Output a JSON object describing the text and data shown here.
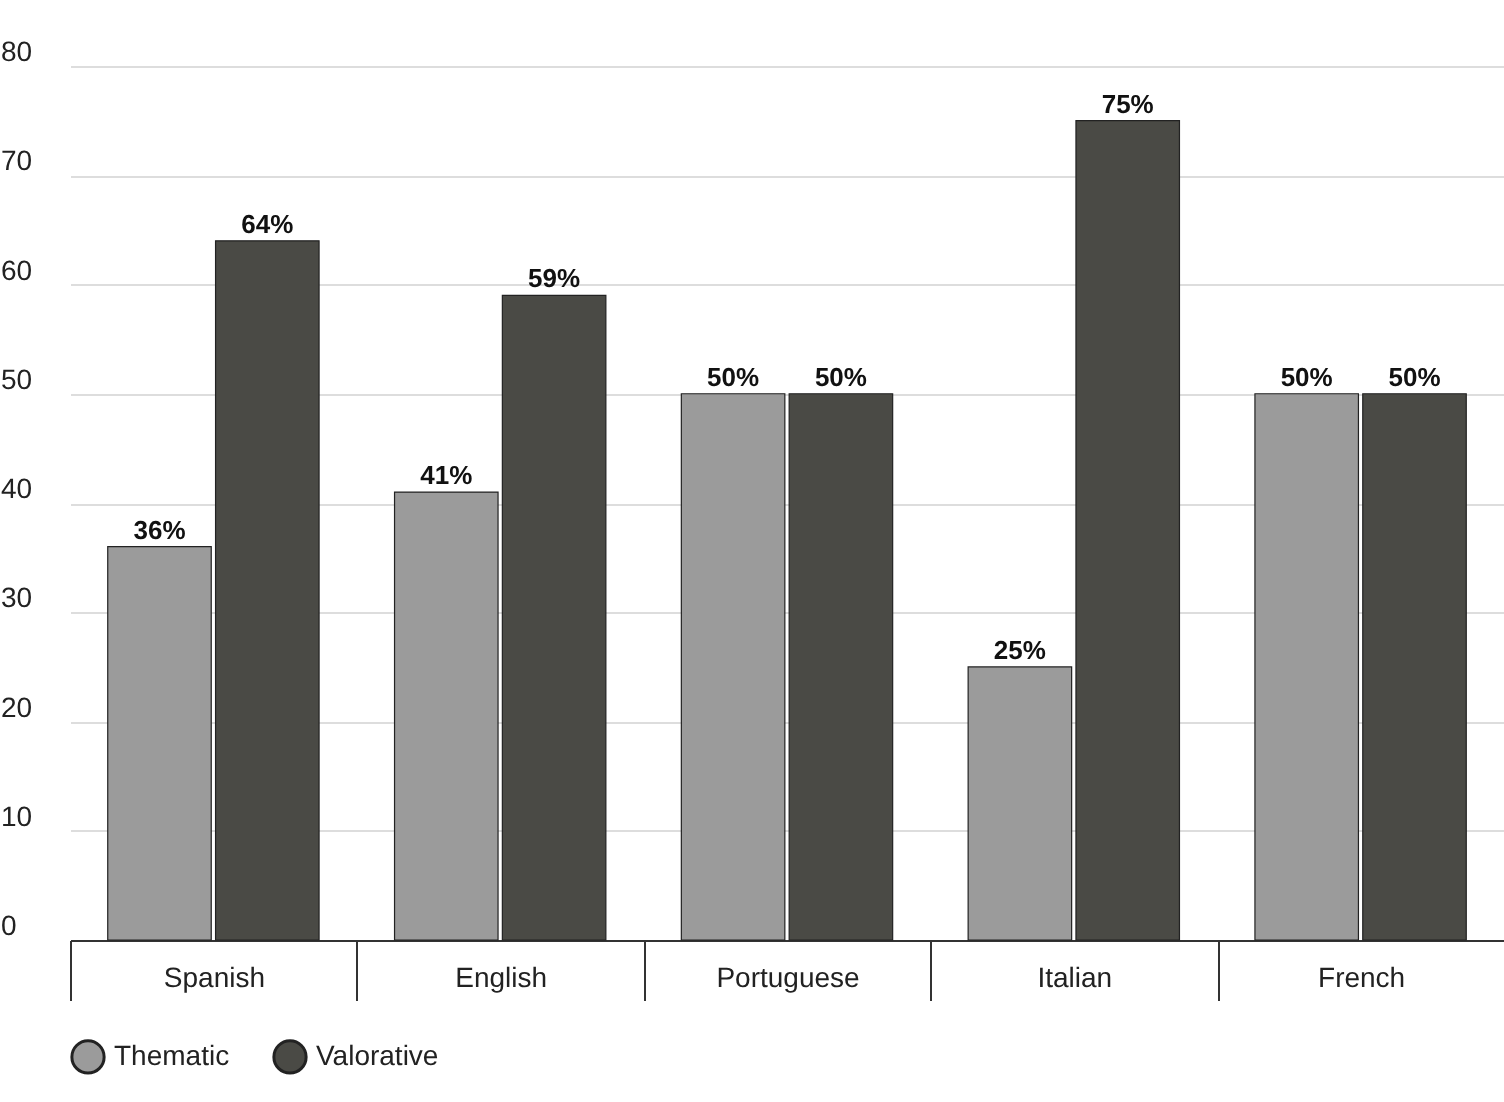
{
  "chart_data": {
    "type": "bar",
    "categories": [
      "Spanish",
      "English",
      "Portuguese",
      "Italian",
      "French"
    ],
    "series": [
      {
        "name": "Thematic",
        "color": "#9b9b9b",
        "values": [
          36,
          41,
          50,
          25,
          50
        ],
        "value_labels": [
          "36%",
          "41%",
          "50%",
          "25%",
          "50%"
        ]
      },
      {
        "name": "Valorative",
        "color": "#4a4a45",
        "values": [
          64,
          59,
          50,
          75,
          50
        ],
        "value_labels": [
          "64%",
          "59%",
          "50%",
          "75%",
          "50%"
        ]
      }
    ],
    "ylim": [
      0,
      80
    ],
    "yticks": [
      0,
      10,
      20,
      30,
      40,
      50,
      60,
      70,
      80
    ],
    "grid": "y",
    "legend": "bottom"
  }
}
